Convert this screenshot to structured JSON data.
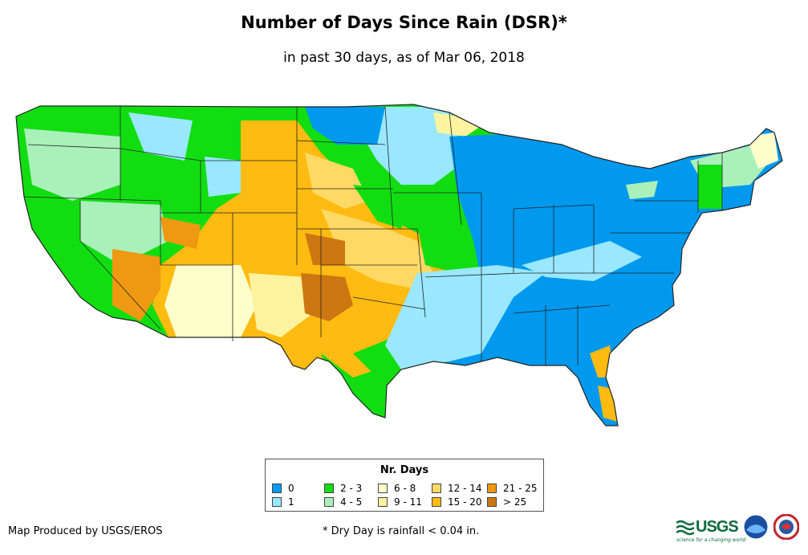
{
  "header": {
    "title": "Number of Days Since Rain (DSR)*",
    "subtitle": "in past 30 days, as of Mar 06, 2018"
  },
  "legend": {
    "title": "Nr. Days",
    "items": [
      {
        "label": "0",
        "color": "#0099ee"
      },
      {
        "label": "1",
        "color": "#99e8ff"
      },
      {
        "label": "2 - 3",
        "color": "#11dd11"
      },
      {
        "label": "4 - 5",
        "color": "#aaf0bb"
      },
      {
        "label": "6 - 8",
        "color": "#ffffcc"
      },
      {
        "label": "9 - 11",
        "color": "#fff3a0"
      },
      {
        "label": "12 - 14",
        "color": "#ffd966"
      },
      {
        "label": "15 - 20",
        "color": "#ffbb11"
      },
      {
        "label": "21 - 25",
        "color": "#ee9911"
      },
      {
        "label": "> 25",
        "color": "#cc7711"
      }
    ]
  },
  "footer": {
    "credit": "Map Produced by USGS/EROS",
    "footnote": "* Dry Day is rainfall < 0.04 in.",
    "logo_text": "USGS",
    "logo_tagline": "science for a changing world"
  }
}
